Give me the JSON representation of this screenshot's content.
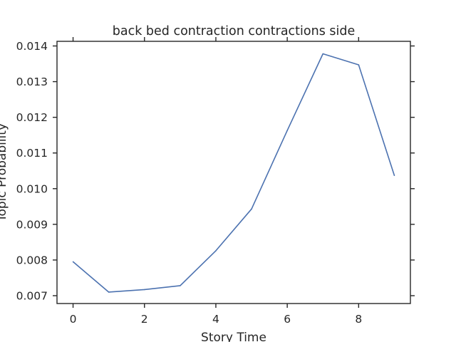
{
  "chart_data": {
    "type": "line",
    "title": "back bed contraction contractions side",
    "xlabel": "Story Time",
    "ylabel": "Topic Probability",
    "xlim": [
      -0.45,
      9.45
    ],
    "ylim": [
      0.00678,
      0.01413
    ],
    "xticks": [
      0,
      2,
      4,
      6,
      8
    ],
    "xtick_labels": [
      "0",
      "2",
      "4",
      "6",
      "8"
    ],
    "yticks": [
      0.007,
      0.008,
      0.009,
      0.01,
      0.011,
      0.012,
      0.013,
      0.014
    ],
    "ytick_labels": [
      "0.007",
      "0.008",
      "0.009",
      "0.010",
      "0.011",
      "0.012",
      "0.013",
      "0.014"
    ],
    "grid": false,
    "series": [
      {
        "color": "#4c72b0",
        "x": [
          0,
          1,
          2,
          3,
          4,
          5,
          6,
          7,
          8,
          9
        ],
        "y": [
          0.00795,
          0.0071,
          0.00717,
          0.00728,
          0.00826,
          0.00943,
          0.01163,
          0.01378,
          0.01347,
          0.01037
        ]
      }
    ]
  }
}
